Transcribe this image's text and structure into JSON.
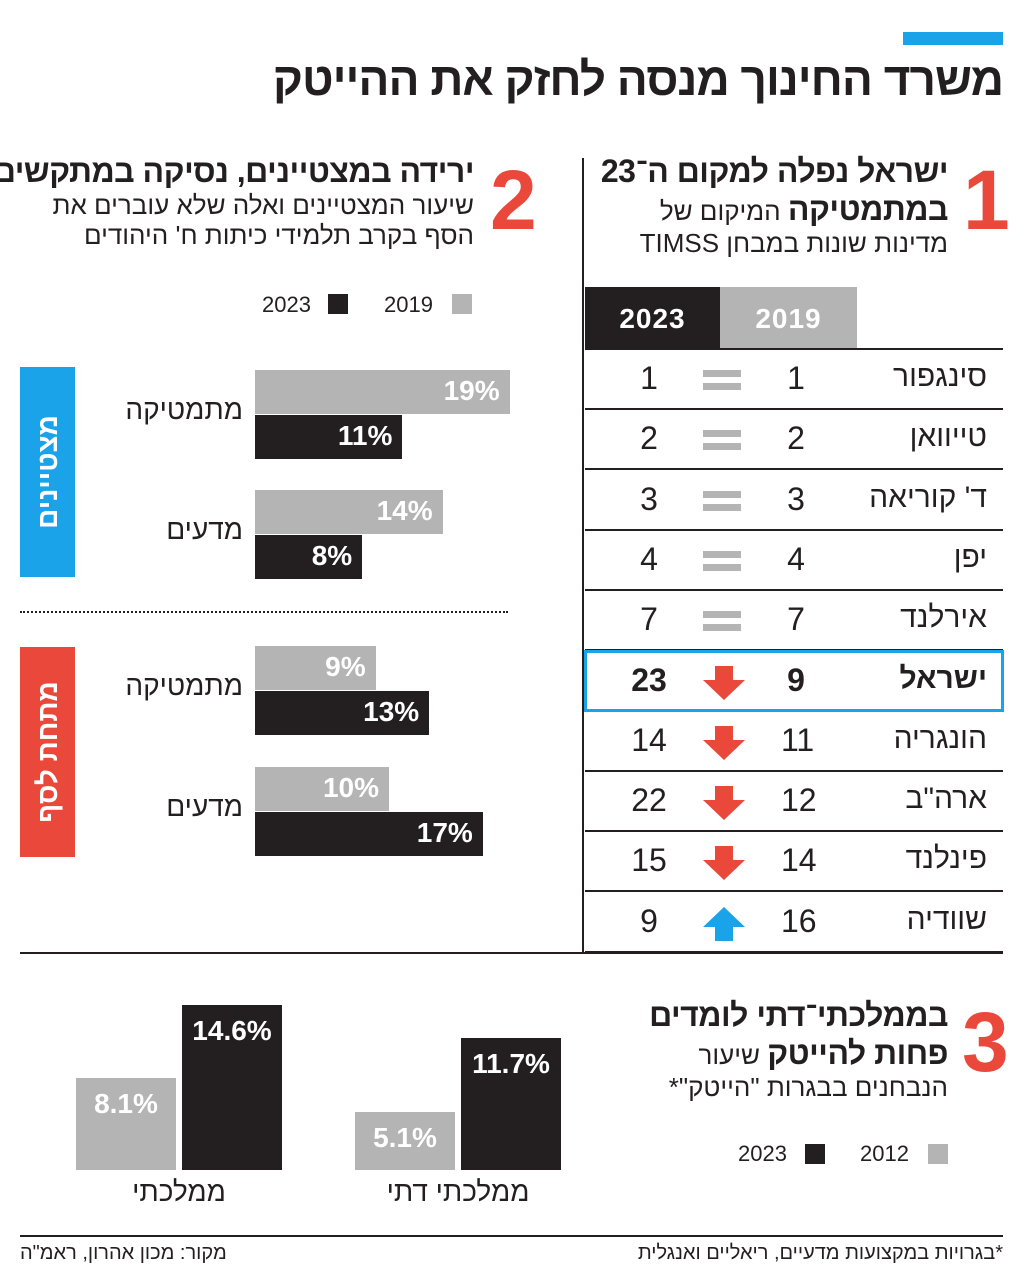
{
  "title": "משרד החינוך מנסה לחזק את ההייטק",
  "colors": {
    "accent_blue": "#1aa3e8",
    "accent_red": "#e9483b",
    "dark": "#231f20",
    "grey": "#b4b4b4"
  },
  "section1": {
    "number": "1",
    "heading1": "ישראל נפלה למקום ה־23",
    "heading2_bold": "במתמטיקה",
    "heading2_rest": " המיקום של",
    "sub": "מדינות שונות במבחן TIMSS",
    "tabs": [
      "2023",
      "2019"
    ],
    "rows": [
      {
        "country": "סינגפור",
        "r2019": "1",
        "r2023": "1",
        "change": "equal"
      },
      {
        "country": "טייוואן",
        "r2019": "2",
        "r2023": "2",
        "change": "equal"
      },
      {
        "country": "ד' קוריאה",
        "r2019": "3",
        "r2023": "3",
        "change": "equal"
      },
      {
        "country": "יפן",
        "r2019": "4",
        "r2023": "4",
        "change": "equal"
      },
      {
        "country": "אירלנד",
        "r2019": "7",
        "r2023": "7",
        "change": "equal"
      },
      {
        "country": "ישראל",
        "r2019": "9",
        "r2023": "23",
        "change": "down",
        "highlight": true
      },
      {
        "country": "הונגריה",
        "r2019": "11",
        "r2023": "14",
        "change": "down"
      },
      {
        "country": "ארה\"ב",
        "r2019": "12",
        "r2023": "22",
        "change": "down"
      },
      {
        "country": "פינלנד",
        "r2019": "14",
        "r2023": "15",
        "change": "down"
      },
      {
        "country": "שוודיה",
        "r2019": "16",
        "r2023": "9",
        "change": "up"
      }
    ]
  },
  "section2": {
    "number": "2",
    "heading": "ירידה במצטיינים, נסיקה במתקשים",
    "sub1": "שיעור המצטיינים ואלה שלא עוברים את",
    "sub2": "הסף בקרב תלמידי כיתות ח' היהודים",
    "side_top": "מצטיינים",
    "side_bottom": "מתחת לסף"
  },
  "section3": {
    "number": "3",
    "heading1": "בממלכתי־דתי לומדים",
    "heading2_bold": "פחות להייטק",
    "heading2_rest": " שיעור",
    "sub": "הנבחנים בבגרות \"הייטק\"*"
  },
  "chart_data": [
    {
      "type": "bar",
      "orientation": "horizontal",
      "unit": "%",
      "legend": [
        "2019",
        "2023"
      ],
      "groups": [
        {
          "side": "מצטיינים",
          "category": "מתמטיקה",
          "values": [
            19,
            11
          ]
        },
        {
          "side": "מצטיינים",
          "category": "מדעים",
          "values": [
            14,
            8
          ]
        },
        {
          "side": "מתחת לסף",
          "category": "מתמטיקה",
          "values": [
            9,
            13
          ]
        },
        {
          "side": "מתחת לסף",
          "category": "מדעים",
          "values": [
            10,
            17
          ]
        }
      ],
      "labels": [
        "19%",
        "11%",
        "14%",
        "8%",
        "9%",
        "13%",
        "10%",
        "17%"
      ]
    },
    {
      "type": "bar",
      "orientation": "vertical",
      "unit": "%",
      "legend": [
        "2012",
        "2023"
      ],
      "categories": [
        "ממלכתי",
        "ממלכתי דתי"
      ],
      "series": [
        {
          "name": "2012",
          "values": [
            8.1,
            5.1
          ]
        },
        {
          "name": "2023",
          "values": [
            14.6,
            11.7
          ]
        }
      ],
      "labels": [
        [
          "8.1%",
          "14.6%"
        ],
        [
          "5.1%",
          "11.7%"
        ]
      ]
    }
  ],
  "footer": {
    "note": "*בגרויות במקצועות מדעיים, ריאליים ואנגלית",
    "source": "מקור: מכון אהרון, ראמ\"ה"
  }
}
